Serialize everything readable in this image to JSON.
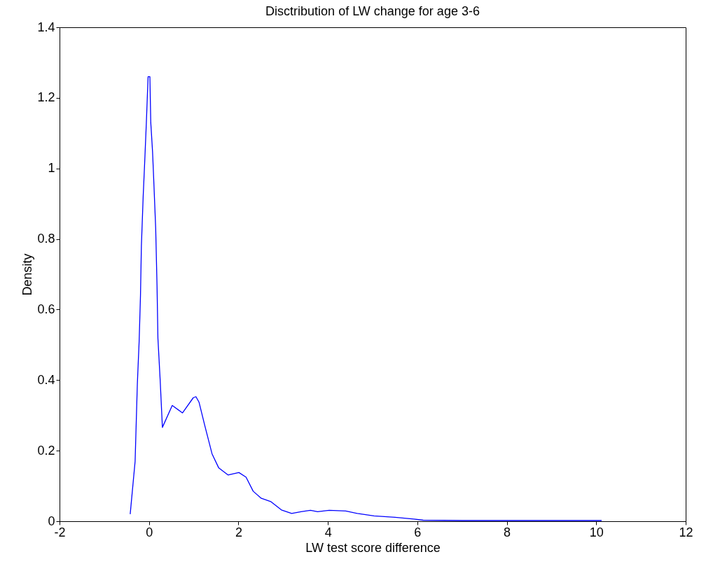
{
  "chart_data": {
    "type": "line",
    "title": "Disctribution of LW change for age 3-6",
    "xlabel": "LW test score difference",
    "ylabel": "Density",
    "x": [
      -0.42,
      -0.31,
      -0.26,
      -0.22,
      -0.19,
      -0.17,
      -0.13,
      -0.09,
      -0.06,
      -0.02,
      0.02,
      0.04,
      0.08,
      0.11,
      0.15,
      0.18,
      0.2,
      0.25,
      0.3,
      0.52,
      0.75,
      0.99,
      1.05,
      1.12,
      1.25,
      1.41,
      1.56,
      1.77,
      2.01,
      2.17,
      2.33,
      2.51,
      2.72,
      2.96,
      3.19,
      3.4,
      3.61,
      3.77,
      4.03,
      4.4,
      4.66,
      5.03,
      5.5,
      5.92,
      6.13,
      7,
      8,
      9,
      10.12
    ],
    "series": [
      {
        "color": "#0000ff",
        "values": [
          0.02,
          0.17,
          0.39,
          0.51,
          0.64,
          0.78,
          0.92,
          1.035,
          1.126,
          1.26,
          1.26,
          1.13,
          1.047,
          0.956,
          0.83,
          0.667,
          0.518,
          0.4,
          0.266,
          0.328,
          0.307,
          0.35,
          0.353,
          0.337,
          0.27,
          0.191,
          0.151,
          0.131,
          0.138,
          0.125,
          0.085,
          0.065,
          0.056,
          0.032,
          0.022,
          0.027,
          0.031,
          0.027,
          0.031,
          0.029,
          0.022,
          0.015,
          0.011,
          0.006,
          0.003,
          0.002,
          0.002,
          0.002,
          0.002
        ]
      }
    ],
    "xlim": [
      -2,
      12
    ],
    "xticks": [
      -2,
      0,
      2,
      4,
      6,
      8,
      10,
      12
    ],
    "ylim": [
      0,
      1.4
    ],
    "yticks": [
      0,
      0.2,
      0.4,
      0.6,
      0.8,
      1,
      1.2,
      1.4
    ],
    "grid": false,
    "marker": "none",
    "line_style": "solid"
  }
}
